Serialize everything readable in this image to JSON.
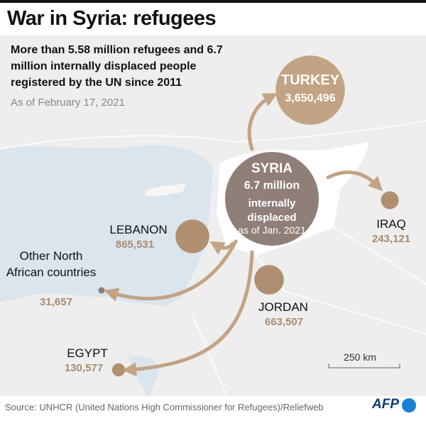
{
  "title": "War in Syria: refugees",
  "subtitle": "More than 5.58 million refugees and 6.7 million internally displaced people registered by the UN since 2011",
  "date": "As of February 17, 2021",
  "origin": {
    "name": "SYRIA",
    "value": 6700000,
    "value_label": "6.7 million",
    "description": "internally displaced",
    "note": "as of Jan. 2021"
  },
  "destinations": [
    {
      "name": "TURKEY",
      "value": 3650496,
      "value_label": "3,650,496"
    },
    {
      "name": "LEBANON",
      "value": 865531,
      "value_label": "865,531"
    },
    {
      "name": "IRAQ",
      "value": 243121,
      "value_label": "243,121"
    },
    {
      "name": "JORDAN",
      "value": 663507,
      "value_label": "663,507"
    },
    {
      "name": "EGYPT",
      "value": 130577,
      "value_label": "130,577"
    },
    {
      "name": "Other North African countries",
      "value": 31657,
      "value_label": "31,657"
    }
  ],
  "scale_label": "250 km",
  "source": "Source: UNHCR (United Nations High Commissioner for Refugees)/Reliefweb",
  "logo": "AFP"
}
